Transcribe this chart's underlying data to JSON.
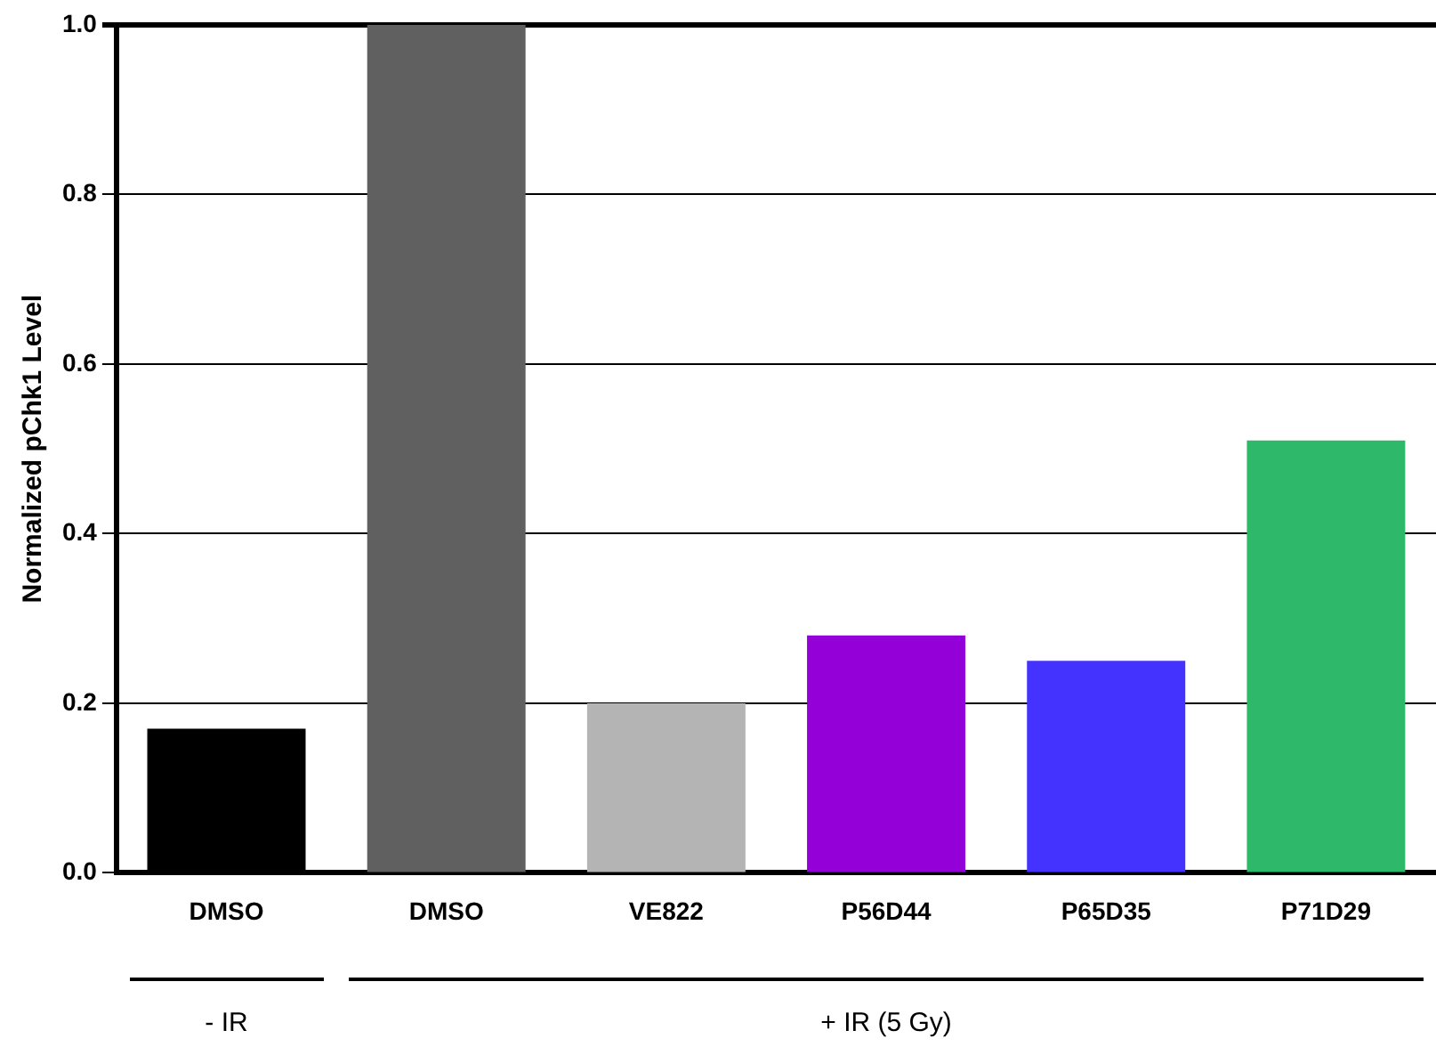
{
  "chart_data": {
    "type": "bar",
    "ylabel": "Normalized pChk1 Level",
    "categories": [
      "DMSO",
      "DMSO",
      "VE822",
      "P56D44",
      "P65D35",
      "P71D29"
    ],
    "values": [
      0.17,
      1.0,
      0.2,
      0.28,
      0.25,
      0.51
    ],
    "colors": [
      "#000000",
      "#606060",
      "#b4b4b4",
      "#9400d8",
      "#4433ff",
      "#2db86a"
    ],
    "ylim": [
      0,
      1.0
    ],
    "yticks": [
      {
        "value": 0,
        "label": "0.0"
      },
      0.2,
      0.4,
      0.6,
      0.8,
      {
        "value": 1,
        "label": "1.0"
      }
    ],
    "grid": "y",
    "legend": false,
    "annotations": [
      "- IR",
      "+ IR (5 Gy)"
    ]
  }
}
